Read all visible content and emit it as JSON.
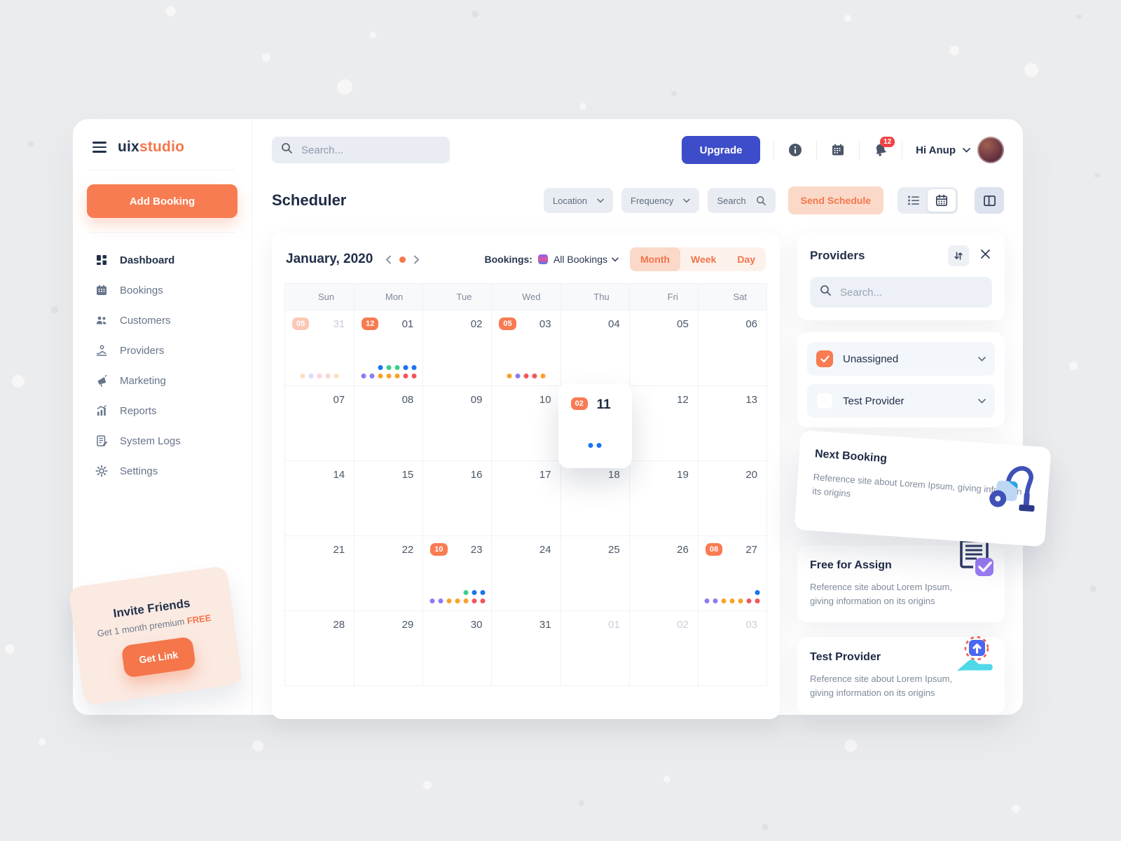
{
  "sidebar": {
    "logo": {
      "bold": "uix",
      "accent": "studio"
    },
    "add_booking_label": "Add Booking",
    "items": [
      {
        "label": "Dashboard",
        "icon": "dashboard-icon",
        "active": true
      },
      {
        "label": "Bookings",
        "icon": "bookings-icon",
        "active": false
      },
      {
        "label": "Customers",
        "icon": "customers-icon",
        "active": false
      },
      {
        "label": "Providers",
        "icon": "providers-icon",
        "active": false
      },
      {
        "label": "Marketing",
        "icon": "marketing-icon",
        "active": false
      },
      {
        "label": "Reports",
        "icon": "reports-icon",
        "active": false
      },
      {
        "label": "System Logs",
        "icon": "system-logs-icon",
        "active": false
      },
      {
        "label": "Settings",
        "icon": "settings-icon",
        "active": false
      }
    ],
    "invite": {
      "title": "Invite Friends",
      "subtitle": "Get 1 month premium",
      "highlight": "FREE",
      "button_label": "Get Link"
    }
  },
  "topbar": {
    "search_placeholder": "Search...",
    "upgrade_label": "Upgrade",
    "notification_count": "12",
    "greeting": "Hi Anup"
  },
  "scheduler": {
    "title": "Scheduler",
    "filters": {
      "location": "Location",
      "frequency": "Frequency",
      "search": "Search"
    },
    "send_schedule_label": "Send Schedule"
  },
  "calendar": {
    "month_label": "January, 2020",
    "bookings_label": "Bookings:",
    "bookings_filter": "All Bookings",
    "view_tabs": [
      "Month",
      "Week",
      "Day"
    ],
    "active_tab": "Month",
    "day_headers": [
      "Sun",
      "Mon",
      "Tue",
      "Wed",
      "Thu",
      "Fri",
      "Sat"
    ],
    "weeks": [
      [
        {
          "day": "31",
          "muted": true,
          "badge": "05",
          "badge_muted": true,
          "dot_rows": [
            [
              "fadeOrange",
              "fadePurple",
              "fadePink",
              "fadePink",
              "fadeOrange"
            ]
          ]
        },
        {
          "day": "01",
          "badge": "12",
          "dot_rows": [
            [
              "blue",
              "green",
              "green",
              "blue",
              "blue"
            ],
            [
              "purple",
              "purple",
              "orange",
              "orange",
              "orange",
              "red",
              "red"
            ]
          ]
        },
        {
          "day": "02"
        },
        {
          "day": "03",
          "badge": "05",
          "dot_rows": [
            [
              "orange",
              "purple",
              "red",
              "red",
              "orange"
            ]
          ]
        },
        {
          "day": "04"
        },
        {
          "day": "05"
        },
        {
          "day": "06"
        }
      ],
      [
        {
          "day": "07"
        },
        {
          "day": "08"
        },
        {
          "day": "09"
        },
        {
          "day": "10"
        },
        {
          "day": "11",
          "highlight": true,
          "badge": "02",
          "dot_rows": [
            [
              "blue",
              "blue"
            ]
          ]
        },
        {
          "day": "12"
        },
        {
          "day": "13"
        }
      ],
      [
        {
          "day": "14"
        },
        {
          "day": "15"
        },
        {
          "day": "16"
        },
        {
          "day": "17"
        },
        {
          "day": "18"
        },
        {
          "day": "19"
        },
        {
          "day": "20"
        }
      ],
      [
        {
          "day": "21"
        },
        {
          "day": "22"
        },
        {
          "day": "23",
          "badge": "10",
          "dot_rows": [
            [
              "green",
              "blue",
              "blue"
            ],
            [
              "purple",
              "purple",
              "orange",
              "orange",
              "orange",
              "red",
              "red"
            ]
          ]
        },
        {
          "day": "24"
        },
        {
          "day": "25"
        },
        {
          "day": "26"
        },
        {
          "day": "27",
          "badge": "08",
          "dot_rows": [
            [
              "blue"
            ],
            [
              "purple",
              "purple",
              "orange",
              "orange",
              "orange",
              "red",
              "red"
            ]
          ]
        }
      ],
      [
        {
          "day": "28"
        },
        {
          "day": "29"
        },
        {
          "day": "30"
        },
        {
          "day": "31"
        },
        {
          "day": "01",
          "muted": true
        },
        {
          "day": "02",
          "muted": true
        },
        {
          "day": "03",
          "muted": true
        }
      ]
    ]
  },
  "providers_panel": {
    "title": "Providers",
    "search_placeholder": "Search...",
    "providers": [
      {
        "label": "Unassigned",
        "checked": true
      },
      {
        "label": "Test Provider",
        "checked": false
      }
    ]
  },
  "cards": {
    "next_booking": {
      "title": "Next Booking",
      "text": "Reference site about Lorem Ipsum, giving inform on its origins"
    },
    "free_for_assign": {
      "title": "Free for Assign",
      "text": "Reference site about Lorem Ipsum, giving information on its origins"
    },
    "test_provider": {
      "title": "Test Provider",
      "text": "Reference site about Lorem Ipsum, giving information on its origins"
    }
  },
  "colors": {
    "accent_orange": "#F4764A",
    "badge_orange": "#F87B52",
    "accent_indigo": "#3D4CC8",
    "notification_red": "#EF4444",
    "dot_palette": {
      "blue": "#1B73F0",
      "green": "#3BCE8C",
      "purple": "#8B7BF4",
      "orange": "#F7A32B",
      "red": "#F2555C",
      "fadeOrange": "#F9DFC2",
      "fadePurple": "#DDD9F9",
      "fadePink": "#F8D3DC"
    }
  }
}
